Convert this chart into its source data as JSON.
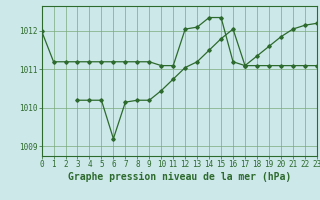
{
  "line1_x": [
    0,
    1,
    2,
    3,
    4,
    5,
    6,
    7,
    8,
    9,
    10,
    11,
    12,
    13,
    14,
    15,
    16,
    17,
    18,
    19,
    20,
    21,
    22,
    23
  ],
  "line1_y": [
    1012.0,
    1011.2,
    1011.2,
    1011.2,
    1011.2,
    1011.2,
    1011.2,
    1011.2,
    1011.2,
    1011.2,
    1011.1,
    1011.1,
    1012.05,
    1012.1,
    1012.35,
    1012.35,
    1011.2,
    1011.1,
    1011.1,
    1011.1,
    1011.1,
    1011.1,
    1011.1,
    1011.1
  ],
  "line2_x": [
    3,
    4,
    5,
    6,
    7,
    8,
    9,
    10,
    11,
    12,
    13,
    14,
    15,
    16,
    17,
    18,
    19,
    20,
    21,
    22,
    23
  ],
  "line2_y": [
    1010.2,
    1010.2,
    1010.2,
    1009.2,
    1010.15,
    1010.2,
    1010.2,
    1010.45,
    1010.75,
    1011.05,
    1011.2,
    1011.5,
    1011.8,
    1012.05,
    1011.1,
    1011.35,
    1011.6,
    1011.85,
    1012.05,
    1012.15,
    1012.2
  ],
  "line_color": "#2d6a2d",
  "bg_color": "#cce8e8",
  "grid_color": "#7aaa7a",
  "xlabel": "Graphe pression niveau de la mer (hPa)",
  "xlim": [
    0,
    23
  ],
  "ylim": [
    1008.75,
    1012.65
  ],
  "yticks": [
    1009,
    1010,
    1011,
    1012
  ],
  "xticks": [
    0,
    1,
    2,
    3,
    4,
    5,
    6,
    7,
    8,
    9,
    10,
    11,
    12,
    13,
    14,
    15,
    16,
    17,
    18,
    19,
    20,
    21,
    22,
    23
  ],
  "xtick_labels": [
    "0",
    "1",
    "2",
    "3",
    "4",
    "5",
    "6",
    "7",
    "8",
    "9",
    "10",
    "11",
    "12",
    "13",
    "14",
    "15",
    "16",
    "17",
    "18",
    "19",
    "20",
    "21",
    "22",
    "23"
  ],
  "marker": "D",
  "markersize": 1.8,
  "linewidth": 0.9,
  "xlabel_fontsize": 7.0,
  "tick_fontsize": 5.5
}
